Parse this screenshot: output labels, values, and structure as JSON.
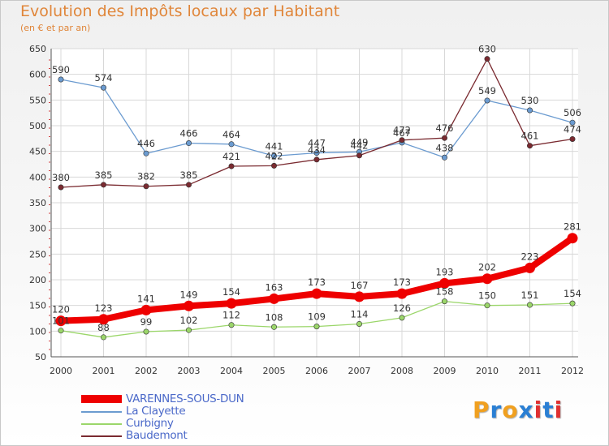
{
  "title": "Evolution des Impôts locaux par Habitant",
  "subtitle": "(en € et par an)",
  "logo": {
    "text": "Proxiti",
    "letters": [
      "P",
      "r",
      "o",
      "x",
      "i",
      "t",
      "i"
    ],
    "colors": [
      "#f0a020",
      "#2a7fd4",
      "#f0a020",
      "#2a7fd4",
      "#e03030",
      "#2a7fd4",
      "#e03030"
    ]
  },
  "chart_data": {
    "type": "line",
    "title": "Evolution des Impôts locaux par Habitant",
    "ylabel": "(en € et par an)",
    "categories": [
      "2000",
      "2001",
      "2002",
      "2003",
      "2004",
      "2005",
      "2006",
      "2007",
      "2008",
      "2009",
      "2010",
      "2011",
      "2012"
    ],
    "ylim": [
      50,
      650
    ],
    "yticks": [
      50,
      100,
      150,
      200,
      250,
      300,
      350,
      400,
      450,
      500,
      550,
      600,
      650
    ],
    "grid": true,
    "series": [
      {
        "name": "VARENNES-SOUS-DUN",
        "color": "#ee0000",
        "values": [
          120,
          123,
          141,
          149,
          154,
          163,
          173,
          167,
          173,
          193,
          202,
          223,
          281
        ]
      },
      {
        "name": "La Clayette",
        "color": "#6b9bd0",
        "values": [
          590,
          574,
          446,
          466,
          464,
          441,
          447,
          449,
          467,
          438,
          549,
          530,
          506
        ]
      },
      {
        "name": "Curbigny",
        "color": "#9bd66a",
        "values": [
          101,
          88,
          99,
          102,
          112,
          108,
          109,
          114,
          126,
          158,
          150,
          151,
          154
        ]
      },
      {
        "name": "Baudemont",
        "color": "#7a2a30",
        "values": [
          380,
          385,
          382,
          385,
          421,
          422,
          434,
          442,
          472,
          476,
          630,
          461,
          474
        ]
      }
    ]
  }
}
